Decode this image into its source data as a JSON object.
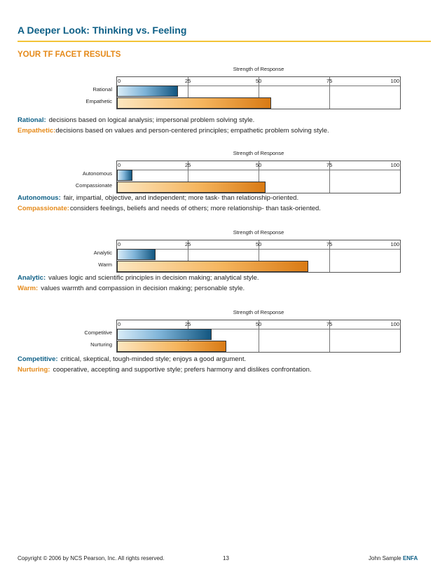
{
  "title": "A Deeper Look: Thinking vs. Feeling",
  "subtitle": "YOUR TF FACET RESULTS",
  "chart_data": [
    {
      "type": "bar",
      "title": "Strength of Response",
      "xlim": [
        0,
        100
      ],
      "ticks": [
        "0",
        "25",
        "50",
        "75",
        "100"
      ],
      "categories": [
        "Rational",
        "Empathetic"
      ],
      "values": [
        21,
        54
      ]
    },
    {
      "type": "bar",
      "title": "Strength of Response",
      "xlim": [
        0,
        100
      ],
      "ticks": [
        "0",
        "25",
        "50",
        "75",
        "100"
      ],
      "categories": [
        "Autonomous",
        "Compassionate"
      ],
      "values": [
        5,
        52
      ]
    },
    {
      "type": "bar",
      "title": "Strength of Response",
      "xlim": [
        0,
        100
      ],
      "ticks": [
        "0",
        "25",
        "50",
        "75",
        "100"
      ],
      "categories": [
        "Analytic",
        "Warm"
      ],
      "values": [
        13,
        67
      ]
    },
    {
      "type": "bar",
      "title": "Strength of Response",
      "xlim": [
        0,
        100
      ],
      "ticks": [
        "0",
        "25",
        "50",
        "75",
        "100"
      ],
      "categories": [
        "Competitive",
        "Nurturing"
      ],
      "values": [
        33,
        38
      ]
    }
  ],
  "descriptions": [
    {
      "term": "Rational:",
      "text": "decisions based on logical analysis; impersonal problem solving style."
    },
    {
      "term": "Empathetic:",
      "text": "decisions based on values and person-centered principles; empathetic problem solving style."
    },
    {
      "term": "Autonomous:",
      "text": "fair, impartial, objective, and independent; more task- than relationship-oriented."
    },
    {
      "term": "Compassionate:",
      "text": "considers feelings, beliefs and needs of others; more relationship- than task-oriented."
    },
    {
      "term": "Analytic:",
      "text": "values logic and scientific principles in decision making; analytical style."
    },
    {
      "term": "Warm:",
      "text": "values warmth and compassion in decision making; personable style."
    },
    {
      "term": "Competitive:",
      "text": "critical, skeptical, tough-minded style; enjoys a good argument."
    },
    {
      "term": "Nurturing:",
      "text": "cooperative, accepting and supportive style; prefers harmony and dislikes confrontation."
    }
  ],
  "footer": {
    "copyright": "Copyright © 2006 by NCS Pearson, Inc. All rights reserved.",
    "page": "13",
    "name": "John Sample",
    "product": "ENFA"
  }
}
